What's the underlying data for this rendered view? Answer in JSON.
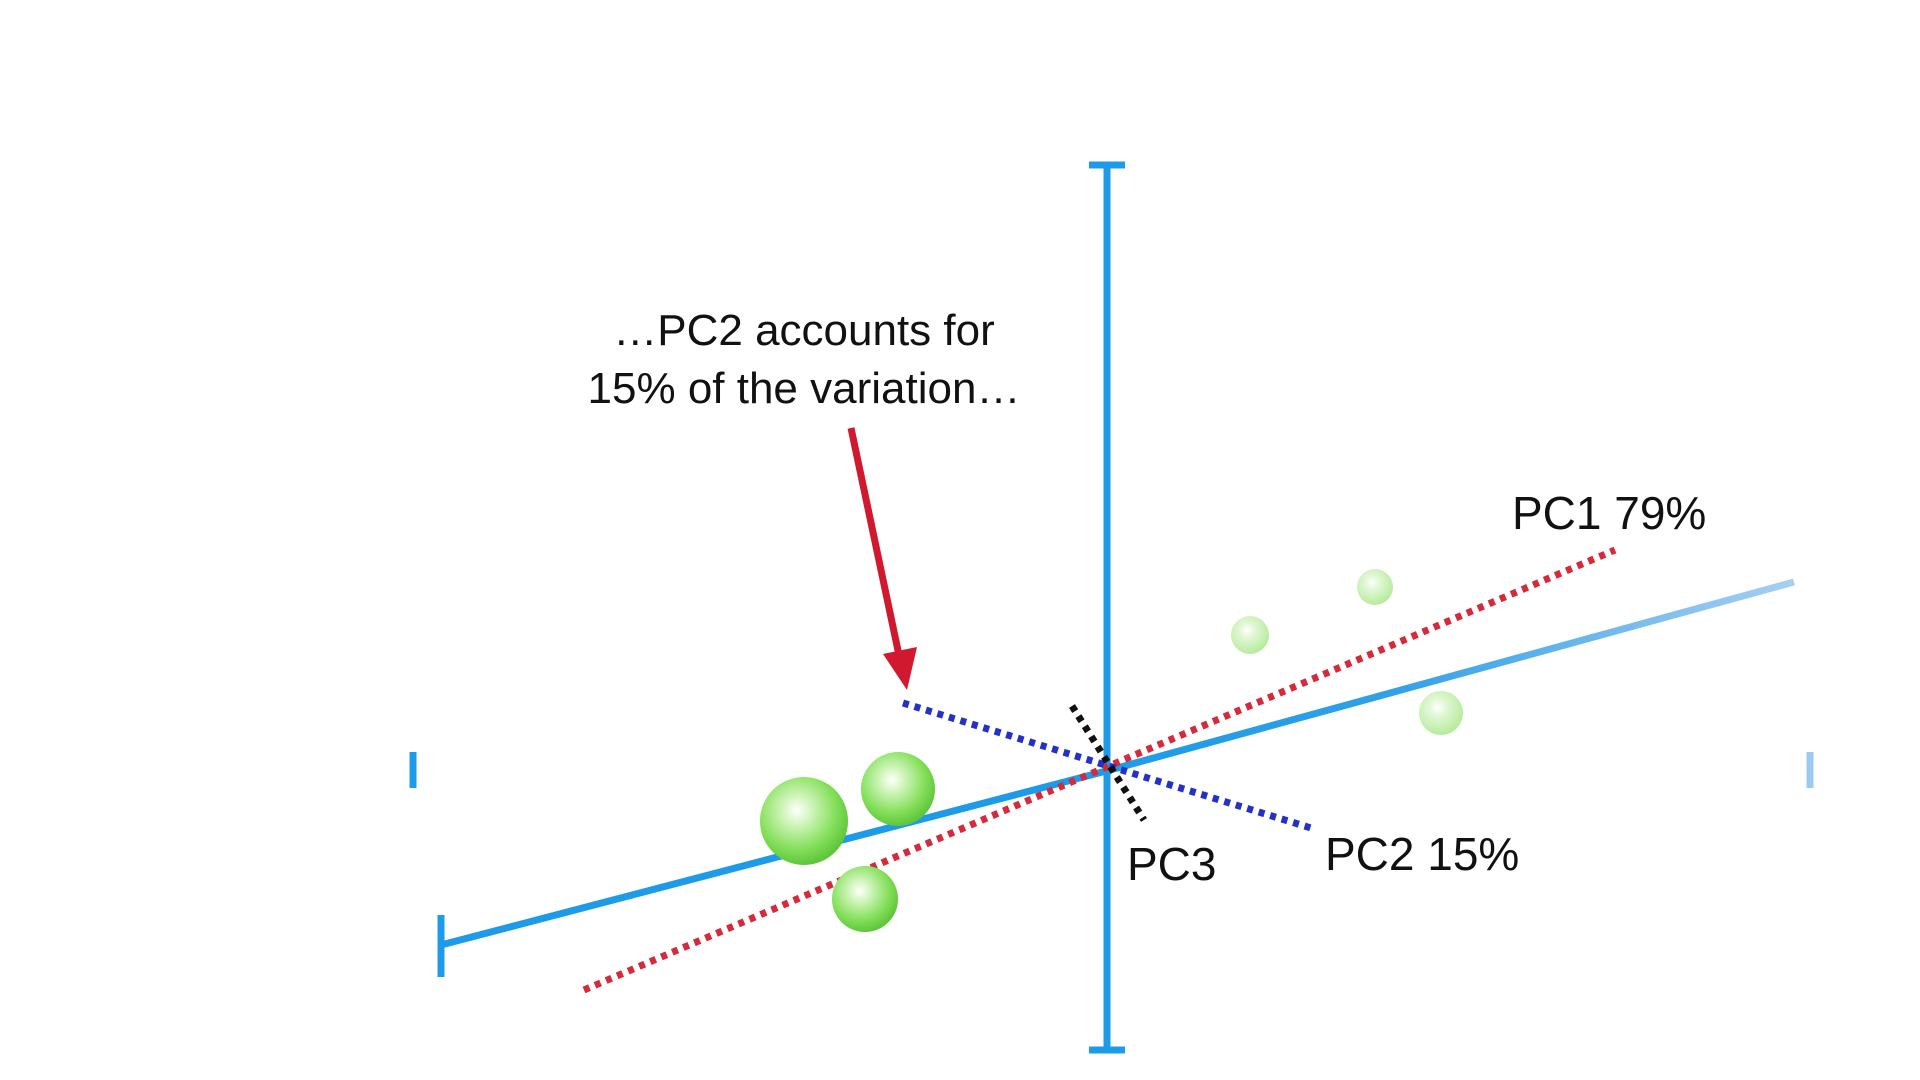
{
  "callout": {
    "line1": "…PC2 accounts for",
    "line2": "15% of the variation…"
  },
  "labels": {
    "pc1": "PC1 79%",
    "pc2": "PC2 15%",
    "pc3": "PC3"
  },
  "colors": {
    "axis": "#1e9be8",
    "pc1": "#d42a3c",
    "pc2": "#2431c7",
    "pc3": "#111111",
    "arrow": "#d0192f",
    "point": "#7fdd5a"
  }
}
